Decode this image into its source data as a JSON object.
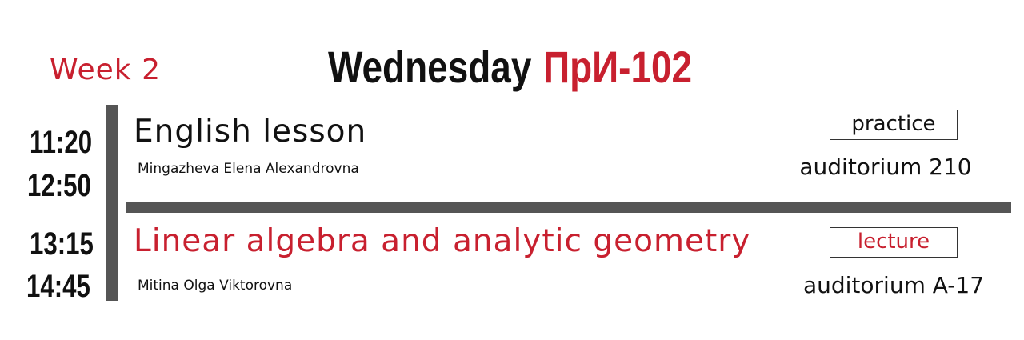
{
  "header": {
    "week": "Week 2",
    "day": "Wednesday",
    "group": "ПрИ-102"
  },
  "colors": {
    "accent": "#c8202f",
    "text": "#111111",
    "divider": "#555555"
  },
  "lessons": [
    {
      "start": "11:20",
      "end": "12:50",
      "subject": "English lesson",
      "teacher": "Mingazheva Elena Alexandrovna",
      "type": "practice",
      "room": "auditorium 210"
    },
    {
      "start": "13:15",
      "end": "14:45",
      "subject": "Linear algebra and analytic geometry",
      "teacher": "Mitina Olga Viktorovna",
      "type": "lecture",
      "room": "auditorium A-17"
    }
  ]
}
